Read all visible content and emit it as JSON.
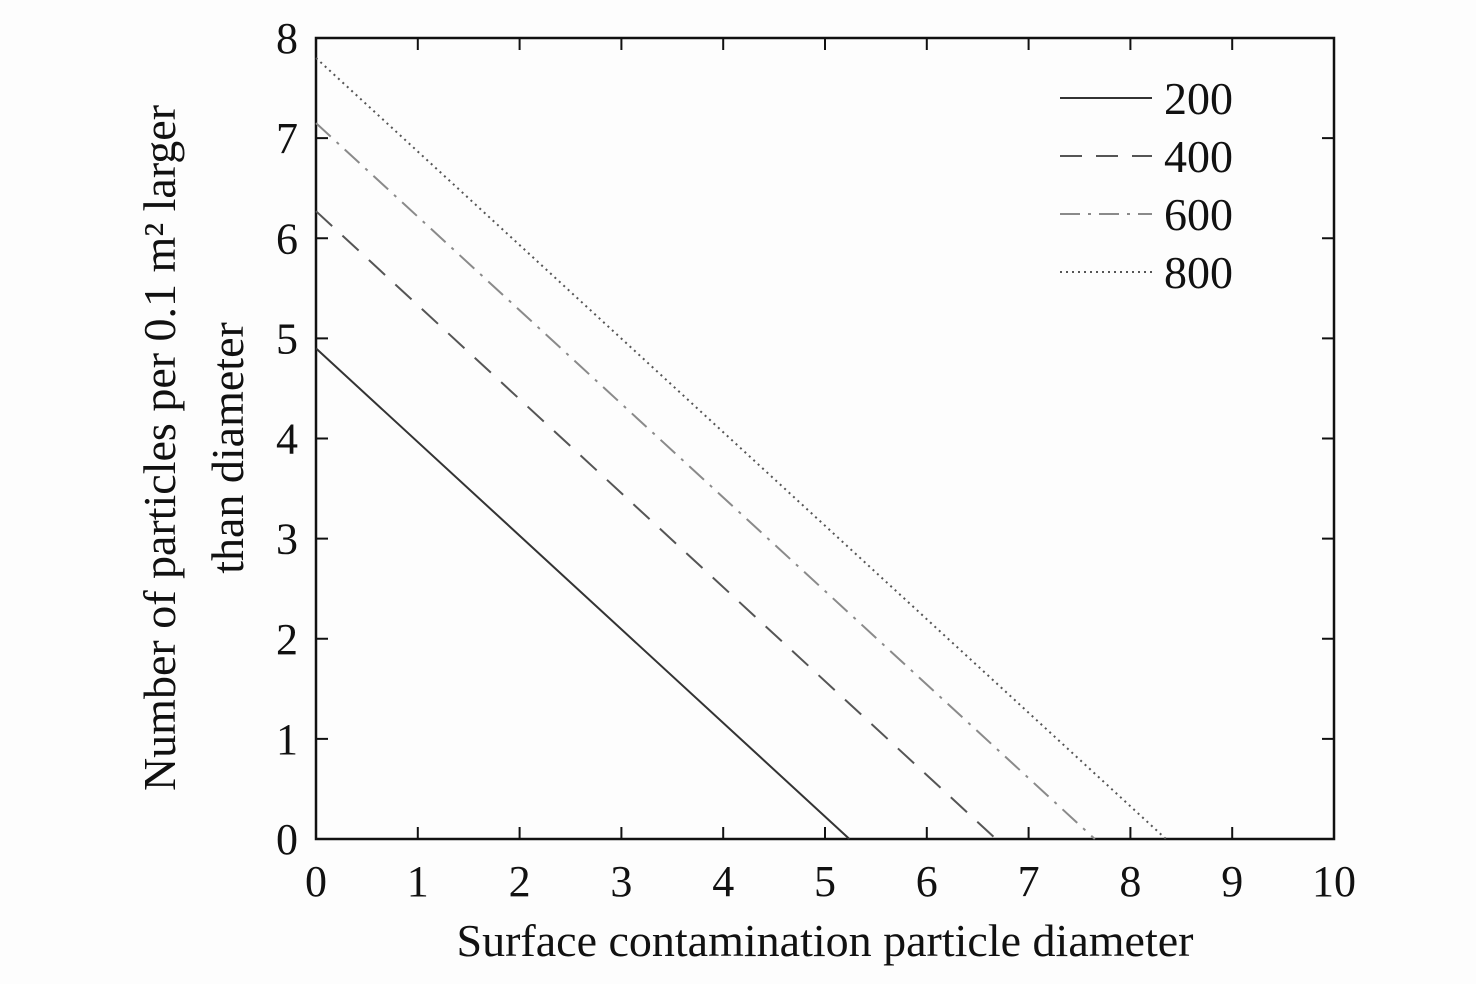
{
  "chart_data": {
    "type": "line",
    "xlabel": "Surface contamination particle diameter",
    "ylabel_line1": "Number of particles per 0.1 m² larger",
    "ylabel_line2": "than diameter",
    "xlim": [
      0,
      10
    ],
    "ylim": [
      0,
      8
    ],
    "x_ticks": [
      "0",
      "1",
      "2",
      "3",
      "4",
      "5",
      "6",
      "7",
      "8",
      "9",
      "10"
    ],
    "y_ticks": [
      "0",
      "1",
      "2",
      "3",
      "4",
      "5",
      "6",
      "7",
      "8"
    ],
    "grid": false,
    "legend_position": "top-right",
    "series": [
      {
        "name": "200",
        "style": "solid",
        "color": "#333333",
        "x": [
          0,
          5.24
        ],
        "y": [
          4.9,
          0
        ]
      },
      {
        "name": "400",
        "style": "dashed",
        "color": "#555555",
        "x": [
          0,
          6.68
        ],
        "y": [
          6.27,
          0
        ]
      },
      {
        "name": "600",
        "style": "dashdot",
        "color": "#8a8a8a",
        "x": [
          0,
          7.65
        ],
        "y": [
          7.15,
          0
        ]
      },
      {
        "name": "800",
        "style": "dotted",
        "color": "#555555",
        "x": [
          0,
          8.35
        ],
        "y": [
          7.8,
          0
        ]
      }
    ]
  }
}
